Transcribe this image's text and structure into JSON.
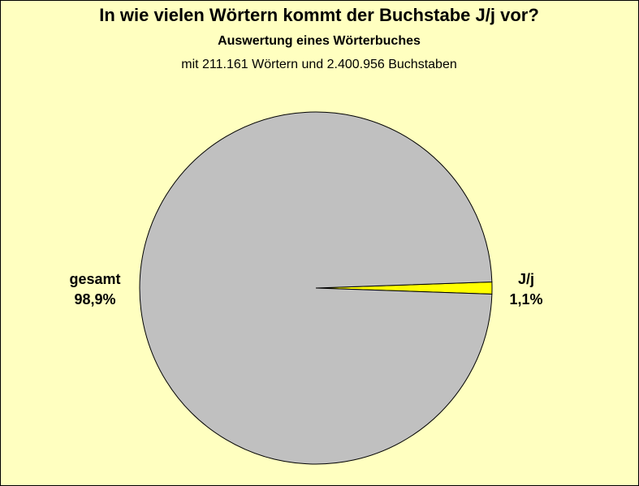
{
  "chart_data": {
    "type": "pie",
    "title": "In wie vielen Wörtern kommt der Buchstabe J/j vor?",
    "subtitle": "Auswertung eines Wörterbuches",
    "subtitle2": "mit 211.161 Wörtern und 2.400.956 Buchstaben",
    "categories": [
      "gesamt",
      "J/j"
    ],
    "values": [
      98.9,
      1.1
    ],
    "value_labels": [
      "98,9%",
      "1,1%"
    ],
    "colors": [
      "#c0c0c0",
      "#ffff00"
    ]
  }
}
